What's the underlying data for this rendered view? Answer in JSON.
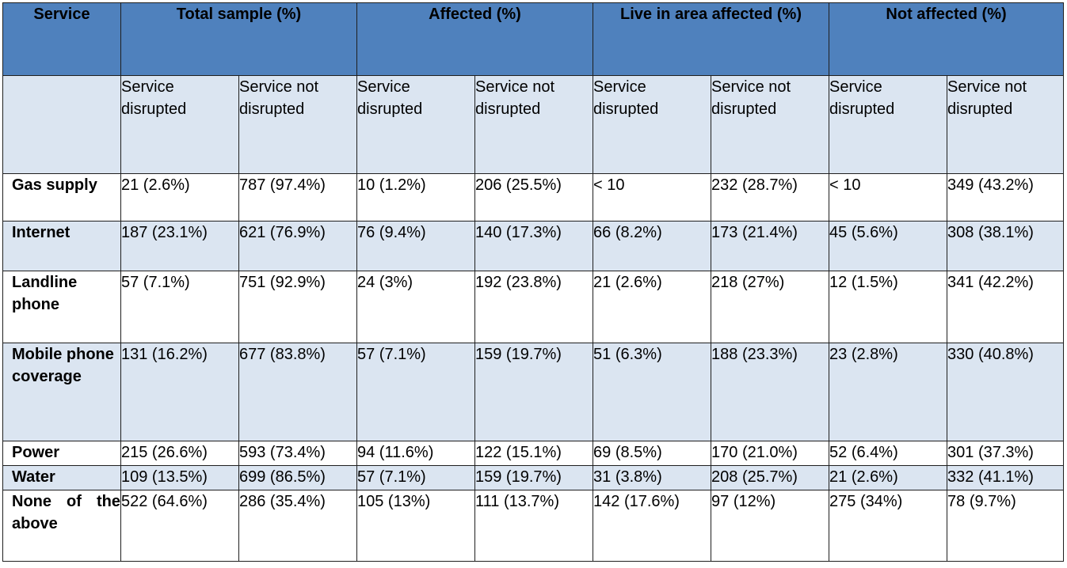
{
  "header": {
    "service": "Service",
    "groups": [
      "Total sample (%)",
      "Affected (%)",
      "Live in area affected (%)",
      "Not affected (%)"
    ]
  },
  "subheader": {
    "disrupted": "Service disrupted",
    "not_disrupted": "Service not disrupted"
  },
  "rows": [
    {
      "label": "Gas supply",
      "values": [
        "21 (2.6%)",
        "787 (97.4%)",
        "10 (1.2%)",
        "206 (25.5%)",
        "< 10",
        "232 (28.7%)",
        "< 10",
        "349 (43.2%)"
      ]
    },
    {
      "label": "Internet",
      "values": [
        "187 (23.1%)",
        "621 (76.9%)",
        "76 (9.4%)",
        "140 (17.3%)",
        "66 (8.2%)",
        "173 (21.4%)",
        "45 (5.6%)",
        "308 (38.1%)"
      ]
    },
    {
      "label": "Landline phone",
      "values": [
        "57 (7.1%)",
        "751 (92.9%)",
        "24 (3%)",
        "192 (23.8%)",
        "21 (2.6%)",
        "218 (27%)",
        "12 (1.5%)",
        "341 (42.2%)"
      ]
    },
    {
      "label": "Mobile phone coverage",
      "values": [
        "131 (16.2%)",
        "677 (83.8%)",
        "57 (7.1%)",
        "159 (19.7%)",
        "51 (6.3%)",
        "188 (23.3%)",
        "23 (2.8%)",
        "330 (40.8%)"
      ]
    },
    {
      "label": "Power",
      "values": [
        "215 (26.6%)",
        "593 (73.4%)",
        "94 (11.6%)",
        "122 (15.1%)",
        "69 (8.5%)",
        "170 (21.0%)",
        "52 (6.4%)",
        "301 (37.3%)"
      ]
    },
    {
      "label": "Water",
      "values": [
        "109 (13.5%)",
        "699 (86.5%)",
        "57 (7.1%)",
        "159 (19.7%)",
        "31 (3.8%)",
        "208 (25.7%)",
        "21 (2.6%)",
        "332 (41.1%)"
      ]
    },
    {
      "label": "None of the above",
      "values": [
        "522 (64.6%)",
        "286 (35.4%)",
        "105 (13%)",
        "111 (13.7%)",
        "142 (17.6%)",
        "97 (12%)",
        "275 (34%)",
        "78 (9.7%)"
      ]
    }
  ],
  "colors": {
    "header_bg": "#4f81bd",
    "header_text": "#ffffff",
    "band_bg": "#dbe5f1",
    "plain_bg": "#ffffff",
    "border": "#1f1f1f"
  }
}
